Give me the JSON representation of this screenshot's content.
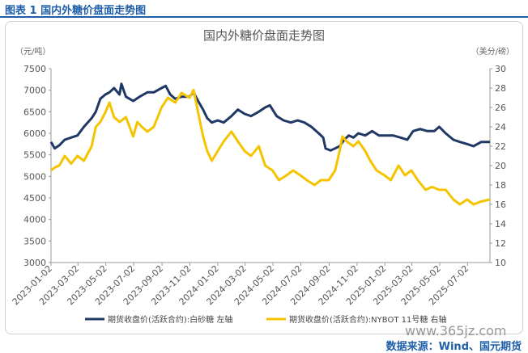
{
  "header": {
    "figure_label": "图表 1 国内外糖价盘面走势图"
  },
  "source": "数据来源：Wind、国元期货",
  "watermark": "www.365jz.com",
  "chart_data": {
    "type": "line",
    "title": "国内外糖价盘面走势图",
    "left_axis": {
      "unit": "（元/吨）",
      "min": 3000,
      "max": 7500,
      "ticks": [
        3000,
        3500,
        4000,
        4500,
        5000,
        5500,
        6000,
        6500,
        7000,
        7500
      ]
    },
    "right_axis": {
      "unit": "（美分/磅）",
      "min": 10,
      "max": 30,
      "ticks": [
        10,
        12,
        14,
        16,
        18,
        20,
        22,
        24,
        26,
        28,
        30
      ]
    },
    "x_range": [
      "2023-01-02",
      "2025-08-20"
    ],
    "x_ticks": [
      "2023-01-02",
      "2023-03-02",
      "2023-05-02",
      "2023-07-02",
      "2023-09-02",
      "2023-11-02",
      "2024-01-02",
      "2024-03-02",
      "2024-05-02",
      "2024-07-02",
      "2024-09-02",
      "2024-11-02",
      "2025-01-02",
      "2025-03-02",
      "2025-05-02",
      "2025-07-02"
    ],
    "legend_position": "bottom",
    "series": [
      {
        "name": "期货收盘价(活跃合约):白砂糖 左轴",
        "axis": "left",
        "color": "#1f3864",
        "points": [
          [
            "2023-01-02",
            5800
          ],
          [
            "2023-01-10",
            5650
          ],
          [
            "2023-01-20",
            5720
          ],
          [
            "2023-02-01",
            5850
          ],
          [
            "2023-02-15",
            5900
          ],
          [
            "2023-03-01",
            5950
          ],
          [
            "2023-03-15",
            6150
          ],
          [
            "2023-04-01",
            6350
          ],
          [
            "2023-04-10",
            6500
          ],
          [
            "2023-04-20",
            6800
          ],
          [
            "2023-05-01",
            6900
          ],
          [
            "2023-05-10",
            6950
          ],
          [
            "2023-05-20",
            7050
          ],
          [
            "2023-06-01",
            6900
          ],
          [
            "2023-06-05",
            7150
          ],
          [
            "2023-06-15",
            6850
          ],
          [
            "2023-07-01",
            6750
          ],
          [
            "2023-07-15",
            6850
          ],
          [
            "2023-08-01",
            6950
          ],
          [
            "2023-08-15",
            6950
          ],
          [
            "2023-09-01",
            7050
          ],
          [
            "2023-09-10",
            7100
          ],
          [
            "2023-09-20",
            6900
          ],
          [
            "2023-10-01",
            6800
          ],
          [
            "2023-10-15",
            6850
          ],
          [
            "2023-11-01",
            6850
          ],
          [
            "2023-11-10",
            6950
          ],
          [
            "2023-11-20",
            6750
          ],
          [
            "2023-12-01",
            6550
          ],
          [
            "2023-12-10",
            6350
          ],
          [
            "2023-12-20",
            6250
          ],
          [
            "2024-01-02",
            6300
          ],
          [
            "2024-01-15",
            6250
          ],
          [
            "2024-02-01",
            6400
          ],
          [
            "2024-02-15",
            6550
          ],
          [
            "2024-03-01",
            6450
          ],
          [
            "2024-03-15",
            6400
          ],
          [
            "2024-04-01",
            6500
          ],
          [
            "2024-04-15",
            6600
          ],
          [
            "2024-04-25",
            6650
          ],
          [
            "2024-05-10",
            6400
          ],
          [
            "2024-05-25",
            6300
          ],
          [
            "2024-06-10",
            6250
          ],
          [
            "2024-06-25",
            6300
          ],
          [
            "2024-07-10",
            6250
          ],
          [
            "2024-07-25",
            6150
          ],
          [
            "2024-08-10",
            6000
          ],
          [
            "2024-08-20",
            5900
          ],
          [
            "2024-08-25",
            5650
          ],
          [
            "2024-09-05",
            5600
          ],
          [
            "2024-09-15",
            5650
          ],
          [
            "2024-09-25",
            5700
          ],
          [
            "2024-10-05",
            5850
          ],
          [
            "2024-10-15",
            5950
          ],
          [
            "2024-10-25",
            5900
          ],
          [
            "2024-11-05",
            6000
          ],
          [
            "2024-11-20",
            5950
          ],
          [
            "2024-12-05",
            6050
          ],
          [
            "2024-12-20",
            5950
          ],
          [
            "2025-01-05",
            5950
          ],
          [
            "2025-01-20",
            5950
          ],
          [
            "2025-02-05",
            5900
          ],
          [
            "2025-02-20",
            5850
          ],
          [
            "2025-03-05",
            6050
          ],
          [
            "2025-03-20",
            6100
          ],
          [
            "2025-04-05",
            6050
          ],
          [
            "2025-04-20",
            6050
          ],
          [
            "2025-05-01",
            6150
          ],
          [
            "2025-05-15",
            6000
          ],
          [
            "2025-06-01",
            5850
          ],
          [
            "2025-06-15",
            5800
          ],
          [
            "2025-07-01",
            5750
          ],
          [
            "2025-07-15",
            5700
          ],
          [
            "2025-08-01",
            5800
          ],
          [
            "2025-08-20",
            5800
          ]
        ]
      },
      {
        "name": "期货收盘价(活跃合约):NYBOT 11号糖 右轴",
        "axis": "right",
        "color": "#f5c400",
        "points": [
          [
            "2023-01-02",
            19.5
          ],
          [
            "2023-01-10",
            19.8
          ],
          [
            "2023-01-20",
            20.0
          ],
          [
            "2023-02-01",
            21.0
          ],
          [
            "2023-02-15",
            20.2
          ],
          [
            "2023-03-01",
            21.0
          ],
          [
            "2023-03-15",
            20.5
          ],
          [
            "2023-04-01",
            22.0
          ],
          [
            "2023-04-10",
            24.0
          ],
          [
            "2023-04-20",
            24.5
          ],
          [
            "2023-05-01",
            25.5
          ],
          [
            "2023-05-10",
            26.5
          ],
          [
            "2023-05-20",
            25.0
          ],
          [
            "2023-06-01",
            24.5
          ],
          [
            "2023-06-15",
            25.0
          ],
          [
            "2023-07-01",
            23.0
          ],
          [
            "2023-07-10",
            24.5
          ],
          [
            "2023-07-20",
            24.0
          ],
          [
            "2023-08-01",
            23.5
          ],
          [
            "2023-08-15",
            24.0
          ],
          [
            "2023-09-01",
            26.0
          ],
          [
            "2023-09-15",
            27.0
          ],
          [
            "2023-10-01",
            26.5
          ],
          [
            "2023-10-15",
            27.5
          ],
          [
            "2023-11-01",
            27.0
          ],
          [
            "2023-11-10",
            27.8
          ],
          [
            "2023-11-20",
            25.5
          ],
          [
            "2023-12-01",
            23.0
          ],
          [
            "2023-12-10",
            21.5
          ],
          [
            "2023-12-20",
            20.5
          ],
          [
            "2024-01-02",
            21.5
          ],
          [
            "2024-01-15",
            22.5
          ],
          [
            "2024-02-01",
            23.5
          ],
          [
            "2024-02-15",
            22.5
          ],
          [
            "2024-03-01",
            21.5
          ],
          [
            "2024-03-15",
            21.0
          ],
          [
            "2024-04-01",
            22.0
          ],
          [
            "2024-04-15",
            20.0
          ],
          [
            "2024-05-01",
            19.5
          ],
          [
            "2024-05-15",
            18.5
          ],
          [
            "2024-06-01",
            19.0
          ],
          [
            "2024-06-15",
            19.5
          ],
          [
            "2024-07-01",
            19.0
          ],
          [
            "2024-07-15",
            18.5
          ],
          [
            "2024-08-01",
            18.0
          ],
          [
            "2024-08-15",
            18.5
          ],
          [
            "2024-09-01",
            18.5
          ],
          [
            "2024-09-15",
            19.5
          ],
          [
            "2024-09-25",
            21.5
          ],
          [
            "2024-10-01",
            23.0
          ],
          [
            "2024-10-10",
            22.5
          ],
          [
            "2024-10-25",
            22.0
          ],
          [
            "2024-11-05",
            22.5
          ],
          [
            "2024-11-20",
            21.5
          ],
          [
            "2024-12-01",
            20.5
          ],
          [
            "2024-12-15",
            19.5
          ],
          [
            "2025-01-01",
            19.0
          ],
          [
            "2025-01-15",
            18.5
          ],
          [
            "2025-02-01",
            20.0
          ],
          [
            "2025-02-15",
            19.0
          ],
          [
            "2025-03-01",
            19.5
          ],
          [
            "2025-03-15",
            18.5
          ],
          [
            "2025-04-01",
            17.5
          ],
          [
            "2025-04-15",
            17.8
          ],
          [
            "2025-05-01",
            17.5
          ],
          [
            "2025-05-15",
            17.5
          ],
          [
            "2025-06-01",
            16.5
          ],
          [
            "2025-06-15",
            16.0
          ],
          [
            "2025-07-01",
            16.5
          ],
          [
            "2025-07-15",
            16.0
          ],
          [
            "2025-08-01",
            16.3
          ],
          [
            "2025-08-20",
            16.5
          ]
        ]
      }
    ]
  }
}
